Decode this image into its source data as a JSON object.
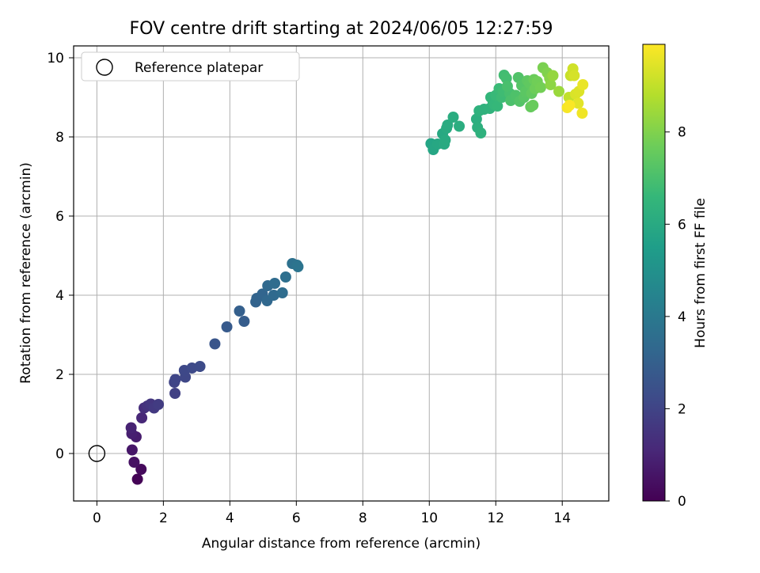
{
  "chart_data": {
    "type": "scatter",
    "title": "FOV centre drift starting at 2024/06/05 12:27:59",
    "xlabel": "Angular distance from reference (arcmin)",
    "ylabel": "Rotation from reference (arcmin)",
    "xlim": [
      -0.7,
      15.4
    ],
    "ylim": [
      -1.2,
      10.3
    ],
    "xticks": [
      0,
      2,
      4,
      6,
      8,
      10,
      12,
      14
    ],
    "yticks": [
      0,
      2,
      4,
      6,
      8,
      10
    ],
    "grid": true,
    "legend": {
      "position": "top-left",
      "entries": [
        "Reference platepar"
      ]
    },
    "reference": {
      "x": 0,
      "y": 0
    },
    "colorbar": {
      "label": "Hours from first FF file",
      "colormap": "viridis",
      "range": [
        0,
        9.9
      ],
      "ticks": [
        0,
        2,
        4,
        6,
        8
      ]
    },
    "series": [
      {
        "points": [
          [
            1.22,
            -0.65,
            0.05
          ],
          [
            1.33,
            -0.4,
            0.25
          ],
          [
            1.12,
            -0.22,
            0.45
          ],
          [
            1.06,
            0.09,
            0.6
          ],
          [
            1.18,
            0.42,
            0.75
          ],
          [
            1.05,
            0.5,
            0.85
          ],
          [
            1.03,
            0.65,
            0.95
          ],
          [
            1.35,
            0.9,
            1.1
          ],
          [
            1.42,
            1.15,
            1.3
          ],
          [
            1.52,
            1.2,
            1.45
          ],
          [
            1.62,
            1.25,
            1.55
          ],
          [
            1.72,
            1.15,
            1.65
          ],
          [
            1.85,
            1.24,
            1.75
          ],
          [
            2.35,
            1.52,
            1.9
          ],
          [
            2.33,
            1.8,
            2.0
          ],
          [
            2.36,
            1.87,
            2.05
          ],
          [
            2.66,
            1.93,
            2.1
          ],
          [
            2.63,
            2.1,
            2.15
          ],
          [
            2.86,
            2.16,
            2.2
          ],
          [
            3.1,
            2.2,
            2.25
          ],
          [
            3.55,
            2.77,
            2.6
          ],
          [
            3.91,
            3.2,
            2.8
          ],
          [
            4.43,
            3.34,
            2.9
          ],
          [
            4.29,
            3.6,
            3.0
          ],
          [
            4.78,
            3.83,
            3.1
          ],
          [
            4.81,
            3.92,
            3.15
          ],
          [
            4.98,
            4.03,
            3.2
          ],
          [
            5.12,
            3.86,
            3.3
          ],
          [
            5.14,
            4.24,
            3.35
          ],
          [
            5.32,
            4.0,
            3.4
          ],
          [
            5.35,
            4.3,
            3.45
          ],
          [
            5.58,
            4.06,
            3.5
          ],
          [
            5.68,
            4.46,
            3.6
          ],
          [
            5.88,
            4.8,
            3.7
          ],
          [
            6.02,
            4.76,
            3.75
          ],
          [
            6.05,
            4.72,
            3.8
          ],
          [
            10.05,
            7.83,
            5.8
          ],
          [
            10.12,
            7.68,
            5.85
          ],
          [
            10.25,
            7.82,
            5.9
          ],
          [
            10.4,
            8.08,
            5.95
          ],
          [
            10.45,
            7.82,
            6.0
          ],
          [
            10.48,
            7.92,
            6.02
          ],
          [
            10.52,
            8.22,
            6.05
          ],
          [
            10.55,
            8.3,
            6.08
          ],
          [
            10.72,
            8.5,
            6.12
          ],
          [
            10.9,
            8.27,
            6.15
          ],
          [
            11.42,
            8.45,
            6.2
          ],
          [
            11.45,
            8.24,
            6.25
          ],
          [
            11.55,
            8.1,
            6.3
          ],
          [
            11.5,
            8.66,
            6.32
          ],
          [
            11.65,
            8.7,
            6.35
          ],
          [
            11.82,
            8.72,
            6.4
          ],
          [
            11.92,
            8.88,
            6.45
          ],
          [
            11.85,
            9.0,
            6.5
          ],
          [
            11.95,
            8.82,
            6.55
          ],
          [
            12.05,
            8.78,
            6.6
          ],
          [
            12.0,
            9.05,
            6.65
          ],
          [
            12.1,
            9.22,
            6.7
          ],
          [
            12.18,
            9.0,
            6.75
          ],
          [
            12.22,
            9.15,
            6.8
          ],
          [
            12.25,
            9.56,
            6.85
          ],
          [
            12.32,
            9.48,
            6.9
          ],
          [
            12.42,
            9.1,
            6.95
          ],
          [
            12.35,
            9.28,
            7.0
          ],
          [
            12.45,
            8.92,
            7.05
          ],
          [
            12.6,
            9.05,
            7.1
          ],
          [
            12.68,
            9.5,
            7.15
          ],
          [
            12.72,
            8.9,
            7.2
          ],
          [
            12.78,
            9.3,
            7.25
          ],
          [
            12.85,
            9.0,
            7.3
          ],
          [
            12.9,
            9.15,
            7.35
          ],
          [
            12.95,
            9.42,
            7.4
          ],
          [
            13.02,
            9.35,
            7.45
          ],
          [
            13.08,
            9.1,
            7.5
          ],
          [
            13.05,
            8.76,
            7.55
          ],
          [
            13.12,
            8.8,
            7.6
          ],
          [
            13.15,
            9.45,
            7.65
          ],
          [
            13.18,
            9.22,
            7.7
          ],
          [
            13.25,
            9.4,
            7.75
          ],
          [
            13.35,
            9.25,
            7.8
          ],
          [
            13.42,
            9.75,
            7.9
          ],
          [
            13.55,
            9.62,
            8.0
          ],
          [
            13.62,
            9.48,
            8.1
          ],
          [
            13.65,
            9.32,
            8.2
          ],
          [
            13.72,
            9.55,
            8.3
          ],
          [
            13.9,
            9.15,
            8.4
          ],
          [
            14.2,
            9.0,
            9.0
          ],
          [
            14.25,
            9.55,
            9.1
          ],
          [
            14.32,
            9.72,
            9.2
          ],
          [
            14.36,
            9.55,
            9.3
          ],
          [
            14.4,
            9.08,
            9.35
          ],
          [
            14.5,
            9.15,
            9.4
          ],
          [
            14.48,
            8.85,
            9.5
          ],
          [
            14.62,
            9.32,
            9.6
          ],
          [
            14.6,
            8.6,
            9.7
          ],
          [
            14.15,
            8.74,
            9.8
          ],
          [
            14.22,
            8.8,
            9.85
          ]
        ]
      }
    ]
  }
}
